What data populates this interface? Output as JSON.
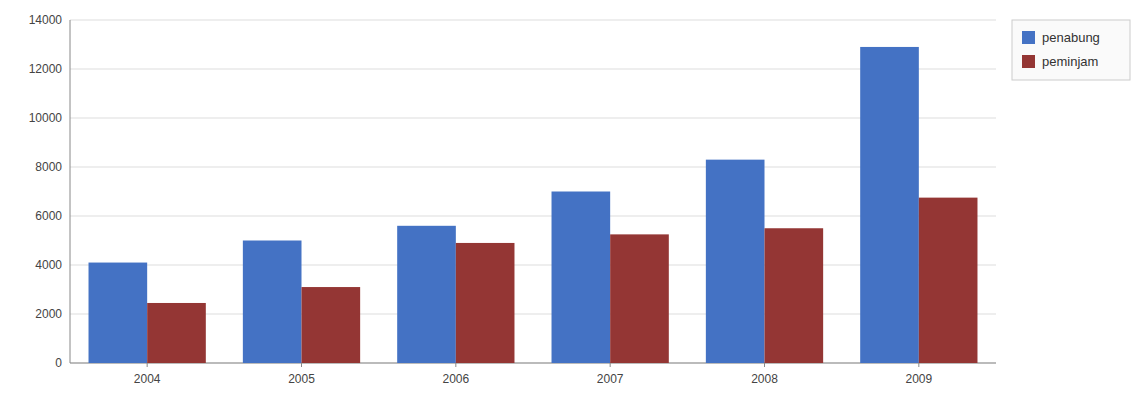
{
  "chart_data": {
    "type": "bar",
    "categories": [
      "2004",
      "2005",
      "2006",
      "2007",
      "2008",
      "2009"
    ],
    "series": [
      {
        "name": "penabung",
        "color": "#4472C4",
        "values": [
          4100,
          5000,
          5600,
          7000,
          8300,
          12900
        ]
      },
      {
        "name": "peminjam",
        "color": "#943634",
        "values": [
          2450,
          3100,
          4900,
          5250,
          5500,
          6750
        ]
      }
    ],
    "ylim": [
      0,
      14000
    ],
    "yticks": [
      0,
      2000,
      4000,
      6000,
      8000,
      10000,
      12000,
      14000
    ],
    "grid": true,
    "legend": "upper right"
  }
}
